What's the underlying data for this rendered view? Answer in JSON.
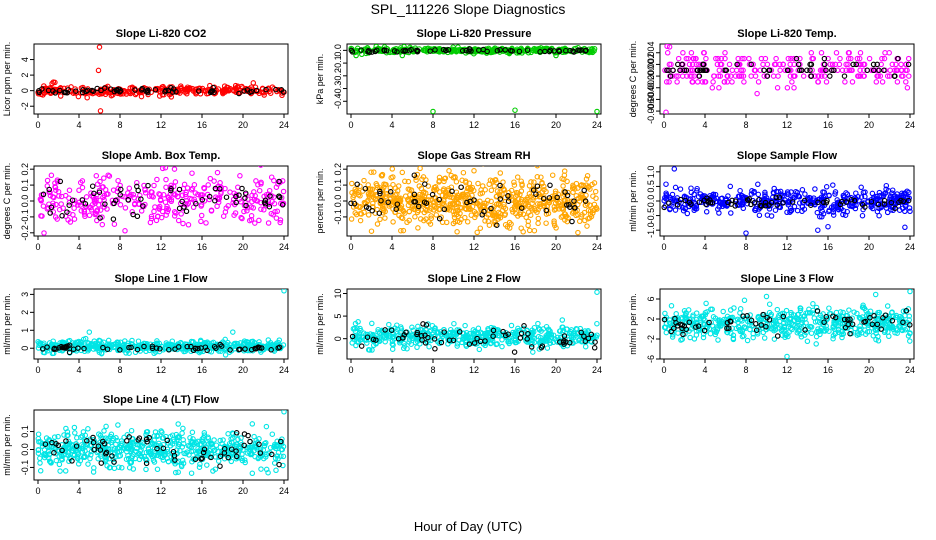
{
  "page": {
    "title": "SPL_111226  Slope Diagnostics",
    "x_axis_title": "Hour of Day (UTC)"
  },
  "colors": {
    "red": "#ff0000",
    "green": "#00cc00",
    "magenta": "#ff00ff",
    "orange": "#ffa500",
    "blue": "#0000ff",
    "cyan": "#00e5e5",
    "black": "#000000"
  },
  "chart_data": [
    {
      "type": "scatter",
      "title": "Slope Li-820 CO2",
      "ylabel": "Licor ppm per min.",
      "xlim": [
        0,
        24
      ],
      "ylim": [
        -3,
        6
      ],
      "xticks": [
        "0",
        "4",
        "8",
        "12",
        "16",
        "20",
        "24"
      ],
      "yticks": [
        {
          "v": -2,
          "label": "-2"
        },
        {
          "v": 0,
          "label": "0"
        },
        {
          "v": 2,
          "label": "2"
        },
        {
          "v": 4,
          "label": "4"
        }
      ],
      "series": [
        {
          "color": "red",
          "y_center": 0,
          "y_spread": 0.3,
          "n": 300,
          "seed": 11,
          "band": 0.3,
          "outliers": [
            [
              6,
              5.6
            ],
            [
              6.1,
              -2.6
            ],
            [
              5.9,
              2.6
            ],
            [
              1.5,
              1.1
            ],
            [
              21,
              1.0
            ],
            [
              4.8,
              -0.9
            ],
            [
              13,
              -0.8
            ]
          ]
        },
        {
          "color": "black",
          "y_center": 0,
          "y_spread": 0.2,
          "n": 60,
          "seed": 12
        }
      ]
    },
    {
      "type": "scatter",
      "title": "Slope Li-820 Pressure",
      "ylabel": "kPa per min.",
      "xlim": [
        0,
        24
      ],
      "ylim": [
        -0.5,
        0.05
      ],
      "xticks": [
        "0",
        "4",
        "8",
        "12",
        "16",
        "20",
        "24"
      ],
      "yticks": [
        {
          "v": -0.4,
          "label": "-0.4"
        },
        {
          "v": -0.3,
          "label": "-0.3"
        },
        {
          "v": -0.2,
          "label": "-0.2"
        },
        {
          "v": -0.1,
          "label": "-0.1"
        },
        {
          "v": 0,
          "label": "0.0"
        }
      ],
      "series": [
        {
          "color": "green",
          "y_center": 0,
          "y_spread": 0.01,
          "n": 350,
          "seed": 21,
          "outliers": [
            [
              8,
              -0.48
            ],
            [
              16,
              -0.47
            ],
            [
              24,
              -0.48
            ],
            [
              0.5,
              -0.04
            ],
            [
              5,
              -0.04
            ],
            [
              20,
              -0.04
            ]
          ]
        },
        {
          "color": "black",
          "y_center": -0.003,
          "y_spread": 0.006,
          "n": 60,
          "seed": 22
        }
      ]
    },
    {
      "type": "scatter",
      "title": "Slope Li-820 Temp.",
      "ylabel": "degrees C per min.",
      "xlim": [
        0,
        24
      ],
      "ylim": [
        -0.0065,
        0.0055
      ],
      "xticks": [
        "0",
        "4",
        "8",
        "12",
        "16",
        "20",
        "24"
      ],
      "yticks": [
        {
          "v": -0.006,
          "label": "-0.006"
        },
        {
          "v": -0.004,
          "label": "-0.004"
        },
        {
          "v": -0.002,
          "label": "-0.002"
        },
        {
          "v": 0,
          "label": "0.000"
        },
        {
          "v": 0.002,
          "label": "0.002"
        },
        {
          "v": 0.004,
          "label": "0.004"
        }
      ],
      "series": [
        {
          "color": "magenta",
          "y_center": 0.0012,
          "y_spread": 0.0015,
          "n": 260,
          "seed": 31,
          "quantize": 0.001,
          "outliers": [
            [
              0.3,
              0.0051
            ],
            [
              0.2,
              -0.0062
            ]
          ]
        },
        {
          "color": "black",
          "y_center": 0.0012,
          "y_spread": 0.0008,
          "n": 60,
          "seed": 32,
          "quantize": 0.001
        }
      ]
    },
    {
      "type": "scatter",
      "title": "Slope Amb. Box Temp.",
      "ylabel": "degrees C per min.",
      "xlim": [
        0,
        24
      ],
      "ylim": [
        -0.22,
        0.22
      ],
      "xticks": [
        "0",
        "4",
        "8",
        "12",
        "16",
        "20",
        "24"
      ],
      "yticks": [
        {
          "v": -0.2,
          "label": "-0.2"
        },
        {
          "v": -0.1,
          "label": "-0.1"
        },
        {
          "v": 0,
          "label": "0.0"
        },
        {
          "v": 0.1,
          "label": "0.1"
        },
        {
          "v": 0.2,
          "label": "0.2"
        }
      ],
      "series": [
        {
          "color": "magenta",
          "y_center": 0,
          "y_spread": 0.08,
          "n": 350,
          "seed": 41
        },
        {
          "color": "black",
          "y_center": 0.01,
          "y_spread": 0.06,
          "n": 60,
          "seed": 42
        }
      ]
    },
    {
      "type": "scatter",
      "title": "Slope Gas Stream RH",
      "ylabel": "percent per min.",
      "xlim": [
        0,
        24
      ],
      "ylim": [
        -0.22,
        0.22
      ],
      "xticks": [
        "0",
        "4",
        "8",
        "12",
        "16",
        "20",
        "24"
      ],
      "yticks": [
        {
          "v": -0.1,
          "label": "-0.1"
        },
        {
          "v": 0,
          "label": "0.0"
        },
        {
          "v": 0.1,
          "label": "0.1"
        },
        {
          "v": 0.2,
          "label": "0.2"
        }
      ],
      "series": [
        {
          "color": "orange",
          "y_center": 0,
          "y_spread": 0.08,
          "n": 700,
          "seed": 51,
          "outliers": [
            [
              2,
              -0.19
            ],
            [
              12,
              0.19
            ],
            [
              5,
              0.18
            ]
          ]
        },
        {
          "color": "black",
          "y_center": 0,
          "y_spread": 0.06,
          "n": 60,
          "seed": 52
        }
      ]
    },
    {
      "type": "scatter",
      "title": "Slope Sample Flow",
      "ylabel": "ml/min per min.",
      "xlim": [
        0,
        24
      ],
      "ylim": [
        -1.2,
        1.2
      ],
      "xticks": [
        "0",
        "4",
        "8",
        "12",
        "16",
        "20",
        "24"
      ],
      "yticks": [
        {
          "v": -1,
          "label": "-1.0"
        },
        {
          "v": -0.5,
          "label": "-0.5"
        },
        {
          "v": 0,
          "label": "0.0"
        },
        {
          "v": 0.5,
          "label": "0.5"
        },
        {
          "v": 1,
          "label": "1.0"
        }
      ],
      "series": [
        {
          "color": "blue",
          "y_center": 0,
          "y_spread": 0.22,
          "n": 450,
          "seed": 61,
          "outliers": [
            [
              1,
              1.1
            ],
            [
              8,
              -1.1
            ],
            [
              15,
              -1.0
            ],
            [
              23.5,
              -0.9
            ]
          ]
        },
        {
          "color": "black",
          "y_center": -0.05,
          "y_spread": 0.08,
          "n": 60,
          "seed": 62
        }
      ]
    },
    {
      "type": "scatter",
      "title": "Slope Line 1 Flow",
      "ylabel": "ml/min per min.",
      "xlim": [
        0,
        24
      ],
      "ylim": [
        -0.6,
        3.3
      ],
      "xticks": [
        "0",
        "4",
        "8",
        "12",
        "16",
        "20",
        "24"
      ],
      "yticks": [
        {
          "v": 0,
          "label": "0"
        },
        {
          "v": 1,
          "label": "1"
        },
        {
          "v": 2,
          "label": "2"
        },
        {
          "v": 3,
          "label": "3"
        }
      ],
      "series": [
        {
          "color": "cyan",
          "y_center": 0.1,
          "y_spread": 0.15,
          "n": 500,
          "seed": 71,
          "outliers": [
            [
              24,
              3.2
            ],
            [
              5,
              0.9
            ],
            [
              19,
              0.9
            ]
          ]
        },
        {
          "color": "black",
          "y_center": 0,
          "y_spread": 0.07,
          "n": 60,
          "seed": 72
        }
      ]
    },
    {
      "type": "scatter",
      "title": "Slope Line 2 Flow",
      "ylabel": "ml/min per min.",
      "xlim": [
        0,
        24
      ],
      "ylim": [
        -4.5,
        11
      ],
      "xticks": [
        "0",
        "4",
        "8",
        "12",
        "16",
        "20",
        "24"
      ],
      "yticks": [
        {
          "v": 0,
          "label": "0"
        },
        {
          "v": 5,
          "label": "5"
        },
        {
          "v": 10,
          "label": "10"
        }
      ],
      "series": [
        {
          "color": "cyan",
          "y_center": 0.5,
          "y_spread": 1.2,
          "n": 500,
          "seed": 81,
          "outliers": [
            [
              24,
              10.3
            ]
          ]
        },
        {
          "color": "black",
          "y_center": 0,
          "y_spread": 1.2,
          "n": 60,
          "seed": 82
        }
      ]
    },
    {
      "type": "scatter",
      "title": "Slope Line 3 Flow",
      "ylabel": "ml/min per min.",
      "xlim": [
        0,
        24
      ],
      "ylim": [
        -6,
        8
      ],
      "xticks": [
        "0",
        "4",
        "8",
        "12",
        "16",
        "20",
        "24"
      ],
      "yticks": [
        {
          "v": -6,
          "label": "-6"
        },
        {
          "v": -2,
          "label": "-2"
        },
        {
          "v": 2,
          "label": "2"
        },
        {
          "v": 6,
          "label": "6"
        }
      ],
      "series": [
        {
          "color": "cyan",
          "y_center": 1,
          "y_spread": 1.6,
          "n": 550,
          "seed": 91,
          "outliers": [
            [
              24,
              7.5
            ],
            [
              10,
              6.5
            ],
            [
              12,
              -5.5
            ]
          ]
        },
        {
          "color": "black",
          "y_center": 1,
          "y_spread": 1.2,
          "n": 60,
          "seed": 92
        }
      ]
    },
    {
      "type": "scatter",
      "title": "Slope Line 4 (LT) Flow",
      "ylabel": "ml/min per min.",
      "xlim": [
        0,
        24
      ],
      "ylim": [
        -0.17,
        0.22
      ],
      "xticks": [
        "0",
        "4",
        "8",
        "12",
        "16",
        "20",
        "24"
      ],
      "yticks": [
        {
          "v": -0.1,
          "label": "-0.1"
        },
        {
          "v": 0,
          "label": "0.0"
        },
        {
          "v": 0.1,
          "label": "0.1"
        }
      ],
      "series": [
        {
          "color": "cyan",
          "y_center": 0,
          "y_spread": 0.05,
          "n": 600,
          "seed": 101,
          "outliers": [
            [
              24,
              0.21
            ]
          ]
        },
        {
          "color": "black",
          "y_center": 0,
          "y_spread": 0.04,
          "n": 60,
          "seed": 102
        }
      ]
    }
  ]
}
